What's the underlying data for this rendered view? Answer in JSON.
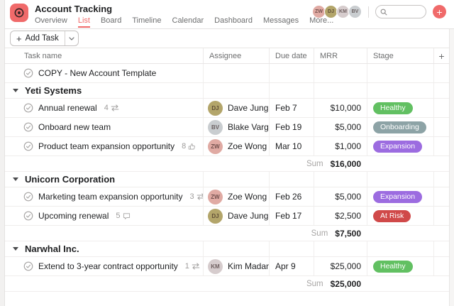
{
  "header": {
    "title": "Account Tracking",
    "accent_color": "#f06a6a",
    "tabs": [
      {
        "label": "Overview",
        "active": false
      },
      {
        "label": "List",
        "active": true
      },
      {
        "label": "Board",
        "active": false
      },
      {
        "label": "Timeline",
        "active": false
      },
      {
        "label": "Calendar",
        "active": false
      },
      {
        "label": "Dashboard",
        "active": false
      },
      {
        "label": "Messages",
        "active": false
      },
      {
        "label": "More...",
        "active": false
      }
    ],
    "members": [
      {
        "initials": "ZW",
        "color": "#e0aaa3"
      },
      {
        "initials": "DJ",
        "color": "#b3a56a"
      },
      {
        "initials": "KM",
        "color": "#d6cccd"
      },
      {
        "initials": "BV",
        "color": "#c9cdd0"
      }
    ],
    "search": {
      "value": "",
      "placeholder": ""
    },
    "add_button_label": "+"
  },
  "toolbar": {
    "add_task_label": "Add Task"
  },
  "table": {
    "columns": [
      "Task name",
      "Assignee",
      "Due date",
      "MRR",
      "Stage"
    ],
    "add_column_label": "+",
    "rows": [
      {
        "type": "task",
        "name": "COPY - New Account Template"
      },
      {
        "type": "section",
        "name": "Yeti Systems"
      },
      {
        "type": "task",
        "name": "Annual renewal",
        "badge": {
          "count": "4",
          "icon": "subtask"
        },
        "assignee": {
          "name": "Dave Jung",
          "initials": "DJ",
          "color": "#b3a56a"
        },
        "due": "Feb 7",
        "mrr": "$10,000",
        "stage": {
          "label": "Healthy",
          "color": "#62c062"
        }
      },
      {
        "type": "task",
        "name": "Onboard new team",
        "assignee": {
          "name": "Blake Vargas",
          "initials": "BV",
          "color": "#c9cdd0"
        },
        "due": "Feb 19",
        "mrr": "$5,000",
        "stage": {
          "label": "Onboarding",
          "color": "#8da3a6"
        }
      },
      {
        "type": "task",
        "name": "Product team expansion opportunity",
        "badge": {
          "count": "8",
          "icon": "like"
        },
        "assignee": {
          "name": "Zoe Wong",
          "initials": "ZW",
          "color": "#e0aaa3"
        },
        "due": "Mar 10",
        "mrr": "$1,000",
        "stage": {
          "label": "Expansion",
          "color": "#9c6ce0"
        }
      },
      {
        "type": "sum",
        "label": "Sum",
        "value": "$16,000"
      },
      {
        "type": "section",
        "name": "Unicorn Corporation"
      },
      {
        "type": "task",
        "name": "Marketing team expansion opportunity",
        "badge": {
          "count": "3",
          "icon": "subtask"
        },
        "assignee": {
          "name": "Zoe Wong",
          "initials": "ZW",
          "color": "#e0aaa3"
        },
        "due": "Feb 26",
        "mrr": "$5,000",
        "stage": {
          "label": "Expansion",
          "color": "#9c6ce0"
        }
      },
      {
        "type": "task",
        "name": "Upcoming renewal",
        "badge": {
          "count": "5",
          "icon": "comment"
        },
        "assignee": {
          "name": "Dave Jung",
          "initials": "DJ",
          "color": "#b3a56a"
        },
        "due": "Feb 17",
        "mrr": "$2,500",
        "stage": {
          "label": "At Risk",
          "color": "#d04949"
        }
      },
      {
        "type": "sum",
        "label": "Sum",
        "value": "$7,500"
      },
      {
        "type": "section",
        "name": "Narwhal Inc."
      },
      {
        "type": "task",
        "name": "Extend to 3-year contract opportunity",
        "badge": {
          "count": "1",
          "icon": "subtask"
        },
        "assignee": {
          "name": "Kim Madan",
          "initials": "KM",
          "color": "#d6cccd"
        },
        "due": "Apr 9",
        "mrr": "$25,000",
        "stage": {
          "label": "Healthy",
          "color": "#62c062"
        }
      },
      {
        "type": "sum",
        "label": "Sum",
        "value": "$25,000"
      }
    ]
  }
}
